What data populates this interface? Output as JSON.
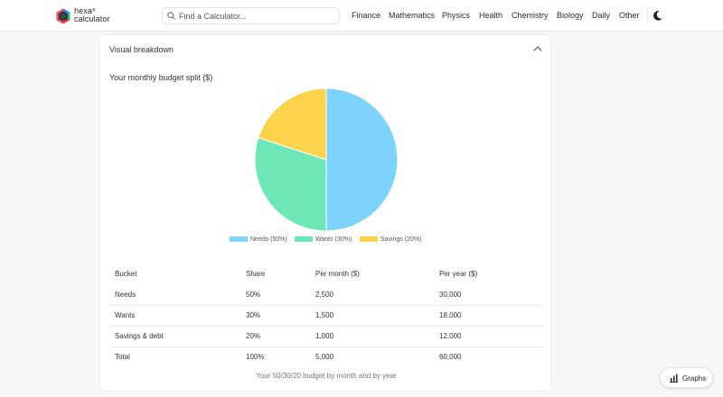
{
  "logo": {
    "line1": "hexa",
    "sup": "®",
    "line2": "calculator"
  },
  "search": {
    "placeholder": "Find a Calculator..."
  },
  "nav": {
    "items": [
      "Finance",
      "Mathematics",
      "Physics",
      "Health",
      "Chemistry",
      "Biology",
      "Daily",
      "Other"
    ]
  },
  "card": {
    "title": "Visual breakdown"
  },
  "chart_data": {
    "type": "pie",
    "title": "Your monthly budget split ($)",
    "categories": [
      "Needs (50%)",
      "Wants (30%)",
      "Savings (20%)"
    ],
    "values": [
      50,
      30,
      20
    ],
    "colors": [
      "#7dd3fc",
      "#6ee7b7",
      "#fcd34d"
    ],
    "legend": "bottom"
  },
  "table": {
    "headers": [
      "Bucket",
      "Share",
      "Per month ($)",
      "Per year ($)"
    ],
    "rows": [
      [
        "Needs",
        "50%",
        "2,500",
        "30,000"
      ],
      [
        "Wants",
        "30%",
        "1,500",
        "18,000"
      ],
      [
        "Savings & debt",
        "20%",
        "1,000",
        "12,000"
      ],
      [
        "Total",
        "100%",
        "5,000",
        "60,000"
      ]
    ],
    "caption": "Your 50/30/20 budget by month and by year"
  },
  "graphs_button": {
    "label": "Graphs"
  }
}
